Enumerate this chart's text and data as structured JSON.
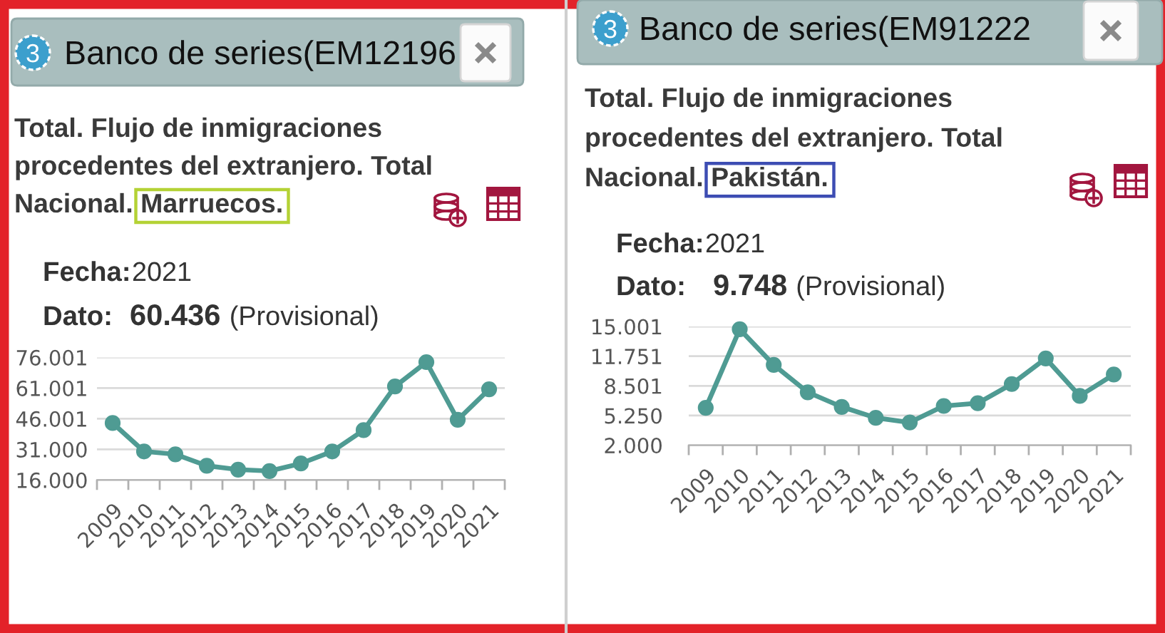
{
  "chart_data": [
    {
      "type": "line",
      "title": "Banco de series(EM12196",
      "subtitle": "Total. Flujo de inmigraciones\nprocedentes del extranjero. Total\nNacional. Marruecos.",
      "annotations": [
        "3",
        "Fecha:",
        "2021",
        "Dato:",
        "60.436",
        "(Provisional)"
      ],
      "categories": [
        "2009",
        "2010",
        "2011",
        "2012",
        "2013",
        "2014",
        "2015",
        "2016",
        "2017",
        "2018",
        "2019",
        "2020",
        "2021"
      ],
      "series": [
        {
          "color": "#4f9b93",
          "values": [
            43900,
            30000,
            28600,
            23000,
            21100,
            20400,
            24100,
            30000,
            40400,
            61800,
            73700,
            45500,
            60436
          ]
        }
      ],
      "ylim": [
        16000,
        76001
      ],
      "yticks": [
        {
          "value": 16000,
          "label": "16.000"
        },
        {
          "value": 31000,
          "label": "31.000"
        },
        {
          "value": 46001,
          "label": "46.001"
        },
        {
          "value": 61001,
          "label": "61.001"
        },
        {
          "value": 76001,
          "label": "76.001"
        }
      ],
      "grid": "y",
      "marker": "circle",
      "line_style": "solid"
    },
    {
      "type": "line",
      "title": "Banco de series(EM91222",
      "subtitle": "Total. Flujo de inmigraciones\nprocedentes del extranjero. Total\nNacional. Pakistán.",
      "annotations": [
        "3",
        "Fecha:",
        "2021",
        "Dato:",
        "9.748",
        "(Provisional)"
      ],
      "categories": [
        "2009",
        "2010",
        "2011",
        "2012",
        "2013",
        "2014",
        "2015",
        "2016",
        "2017",
        "2018",
        "2019",
        "2020",
        "2021"
      ],
      "series": [
        {
          "color": "#4f9b93",
          "values": [
            6100,
            14700,
            10800,
            7800,
            6200,
            5000,
            4500,
            6300,
            6600,
            8700,
            11500,
            7400,
            9748
          ]
        }
      ],
      "ylim": [
        2000,
        15001
      ],
      "yticks": [
        {
          "value": 2000,
          "label": "2.000"
        },
        {
          "value": 5250,
          "label": "5.250"
        },
        {
          "value": 8501,
          "label": "8.501"
        },
        {
          "value": 11751,
          "label": "11.751"
        },
        {
          "value": 15001,
          "label": "15.001"
        }
      ],
      "grid": "y",
      "marker": "circle",
      "line_style": "solid"
    }
  ]
}
